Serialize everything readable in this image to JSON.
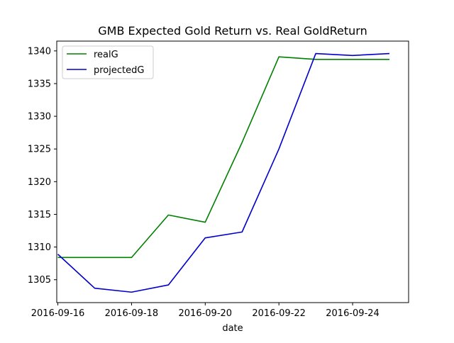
{
  "chart_data": {
    "type": "line",
    "title": "GMB Expected Gold Return vs. Real GoldReturn",
    "xlabel": "date",
    "ylabel": "",
    "x": [
      "2016-09-16",
      "2016-09-17",
      "2016-09-18",
      "2016-09-19",
      "2016-09-20",
      "2016-09-21",
      "2016-09-22",
      "2016-09-23",
      "2016-09-24",
      "2016-09-25"
    ],
    "x_ticks": [
      "2016-09-16",
      "2016-09-18",
      "2016-09-20",
      "2016-09-22",
      "2016-09-24"
    ],
    "y_ticks": [
      1305,
      1310,
      1315,
      1320,
      1325,
      1330,
      1335,
      1340
    ],
    "xlim": [
      "2016-09-15.97",
      "2016-09-25.52"
    ],
    "ylim": [
      1301.5,
      1341.5
    ],
    "grid": false,
    "legend_position": "upper left",
    "series": [
      {
        "name": "realG",
        "color": "#008000",
        "values": [
          1308.4,
          1308.4,
          1308.4,
          1314.9,
          1313.8,
          1326.0,
          1339.1,
          1338.7,
          1338.7,
          1338.7
        ]
      },
      {
        "name": "projectedG",
        "color": "#0000cc",
        "values": [
          1308.9,
          1303.7,
          1303.1,
          1304.2,
          1311.4,
          1312.3,
          1325.0,
          1339.6,
          1339.3,
          1339.6
        ]
      }
    ]
  }
}
